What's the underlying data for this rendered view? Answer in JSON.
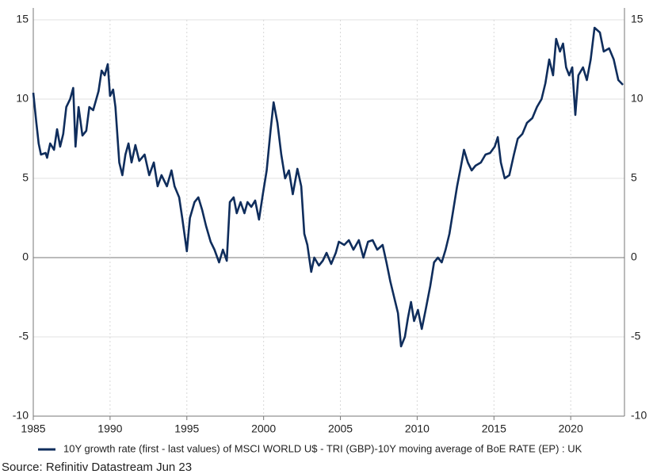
{
  "chart_data": {
    "type": "line",
    "x": [
      1985.0,
      1985.2,
      1985.35,
      1985.5,
      1985.8,
      1985.9,
      1986.1,
      1986.35,
      1986.55,
      1986.75,
      1986.95,
      1987.15,
      1987.4,
      1987.6,
      1987.75,
      1987.95,
      1988.2,
      1988.45,
      1988.65,
      1988.9,
      1989.25,
      1989.45,
      1989.65,
      1989.85,
      1990.0,
      1990.2,
      1990.35,
      1990.6,
      1990.8,
      1991.0,
      1991.2,
      1991.4,
      1991.65,
      1991.9,
      1992.25,
      1992.55,
      1992.85,
      1993.1,
      1993.35,
      1993.7,
      1994.0,
      1994.2,
      1994.5,
      1994.7,
      1995.0,
      1995.2,
      1995.5,
      1995.75,
      1996.0,
      1996.25,
      1996.55,
      1996.8,
      1997.1,
      1997.35,
      1997.6,
      1997.8,
      1998.05,
      1998.25,
      1998.5,
      1998.75,
      1998.95,
      1999.2,
      1999.45,
      1999.7,
      1999.95,
      2000.2,
      2000.45,
      2000.65,
      2000.9,
      2001.15,
      2001.4,
      2001.65,
      2001.9,
      2002.2,
      2002.45,
      2002.65,
      2002.85,
      2003.1,
      2003.3,
      2003.6,
      2003.85,
      2004.1,
      2004.4,
      2004.7,
      2004.9,
      2005.25,
      2005.55,
      2005.85,
      2006.2,
      2006.5,
      2006.8,
      2007.1,
      2007.4,
      2007.75,
      2008.0,
      2008.25,
      2008.5,
      2008.75,
      2008.95,
      2009.2,
      2009.4,
      2009.6,
      2009.8,
      2010.05,
      2010.3,
      2010.55,
      2010.85,
      2011.1,
      2011.35,
      2011.6,
      2011.85,
      2012.1,
      2012.35,
      2012.6,
      2012.8,
      2013.05,
      2013.3,
      2013.55,
      2013.8,
      2014.15,
      2014.45,
      2014.75,
      2015.05,
      2015.25,
      2015.45,
      2015.7,
      2016.0,
      2016.3,
      2016.55,
      2016.85,
      2017.15,
      2017.5,
      2017.8,
      2018.1,
      2018.35,
      2018.6,
      2018.85,
      2019.05,
      2019.3,
      2019.5,
      2019.7,
      2019.9,
      2020.1,
      2020.3,
      2020.5,
      2020.8,
      2021.05,
      2021.3,
      2021.55,
      2021.9,
      2022.15,
      2022.5,
      2022.8,
      2023.1,
      2023.4
    ],
    "series": [
      {
        "name": "10Y growth rate (first - last values) of MSCI WORLD U$ - TRI (GBP)-10Y moving average of BoE RATE (EP) : UK",
        "color": "#0f2d5c",
        "values": [
          10.4,
          8.5,
          7.2,
          6.5,
          6.6,
          6.3,
          7.2,
          6.8,
          8.1,
          7.0,
          7.8,
          9.5,
          10.0,
          10.7,
          7.0,
          9.5,
          7.7,
          8.0,
          9.5,
          9.3,
          10.5,
          11.8,
          11.5,
          12.2,
          10.2,
          10.6,
          9.5,
          6.0,
          5.2,
          6.5,
          7.2,
          6.0,
          7.1,
          6.1,
          6.5,
          5.2,
          6.0,
          4.5,
          5.2,
          4.5,
          5.5,
          4.5,
          3.8,
          2.5,
          0.4,
          2.5,
          3.5,
          3.8,
          3.0,
          2.0,
          1.0,
          0.5,
          -0.3,
          0.5,
          -0.2,
          3.5,
          3.8,
          2.8,
          3.5,
          2.8,
          3.5,
          3.2,
          3.6,
          2.4,
          4.0,
          5.5,
          8.0,
          9.8,
          8.5,
          6.5,
          5.0,
          5.5,
          4.0,
          5.6,
          4.5,
          1.5,
          0.8,
          -0.9,
          0.0,
          -0.5,
          -0.2,
          0.3,
          -0.4,
          0.3,
          1.0,
          0.8,
          1.1,
          0.5,
          1.1,
          0.0,
          1.0,
          1.1,
          0.5,
          0.8,
          -0.3,
          -1.5,
          -2.5,
          -3.5,
          -5.6,
          -5.0,
          -3.8,
          -2.8,
          -4.0,
          -3.3,
          -4.5,
          -3.3,
          -1.8,
          -0.3,
          0.0,
          -0.3,
          0.5,
          1.5,
          3.0,
          4.5,
          5.5,
          6.8,
          6.0,
          5.5,
          5.8,
          6.0,
          6.5,
          6.6,
          7.0,
          7.6,
          6.0,
          5.0,
          5.2,
          6.5,
          7.5,
          7.8,
          8.5,
          8.8,
          9.5,
          10.0,
          11.0,
          12.5,
          11.5,
          13.8,
          13.0,
          13.5,
          12.0,
          11.5,
          12.0,
          9.0,
          11.5,
          12.0,
          11.2,
          12.5,
          14.5,
          14.2,
          13.0,
          13.2,
          12.5,
          11.2,
          10.9
        ]
      }
    ],
    "xlim": [
      1985,
      2023.5
    ],
    "xticks": [
      1985,
      1990,
      1995,
      2000,
      2005,
      2010,
      2015,
      2020
    ],
    "ylim": [
      -10,
      15
    ],
    "yticks": [
      -10,
      -5,
      0,
      5,
      10,
      15
    ],
    "grid": true,
    "source": "Source: Refinitiv Datastream Jun 23"
  }
}
